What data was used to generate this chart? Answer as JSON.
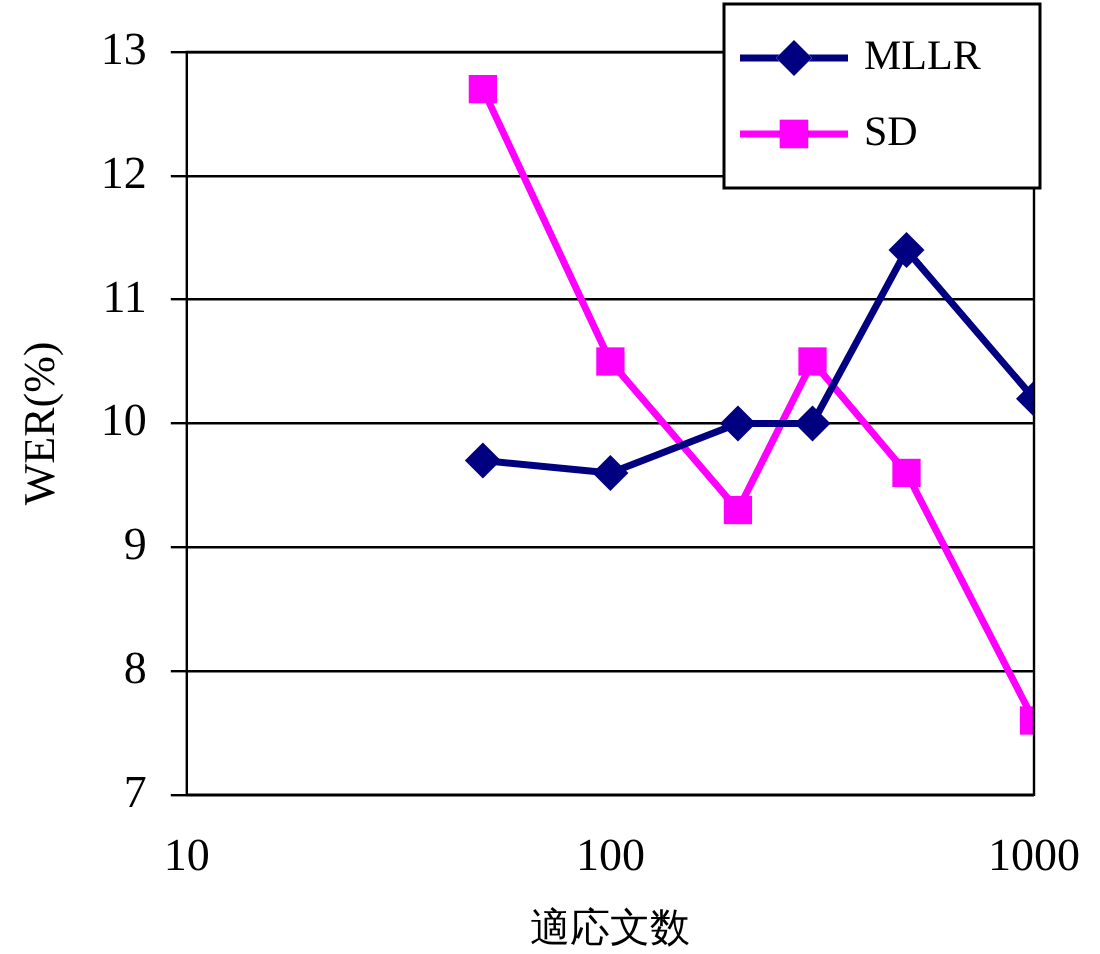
{
  "chart_data": {
    "type": "line",
    "xlabel": "適応文数",
    "ylabel": "WER(%)",
    "x": [
      50,
      100,
      200,
      300,
      500,
      1000
    ],
    "series": [
      {
        "name": "MLLR",
        "color": "#000080",
        "marker": "diamond",
        "values": [
          9.7,
          9.6,
          10.0,
          10.0,
          11.4,
          10.2
        ]
      },
      {
        "name": "SD",
        "color": "#ff00ff",
        "marker": "square",
        "values": [
          12.7,
          10.5,
          9.3,
          10.5,
          9.6,
          7.6
        ]
      }
    ],
    "log": "x",
    "xlim": [
      10,
      1000
    ],
    "xticks": [
      10,
      100,
      1000
    ],
    "ylim": [
      7,
      13
    ],
    "yticks": [
      7,
      8,
      9,
      10,
      11,
      12,
      13
    ],
    "grid": "y",
    "legend": "top right"
  }
}
